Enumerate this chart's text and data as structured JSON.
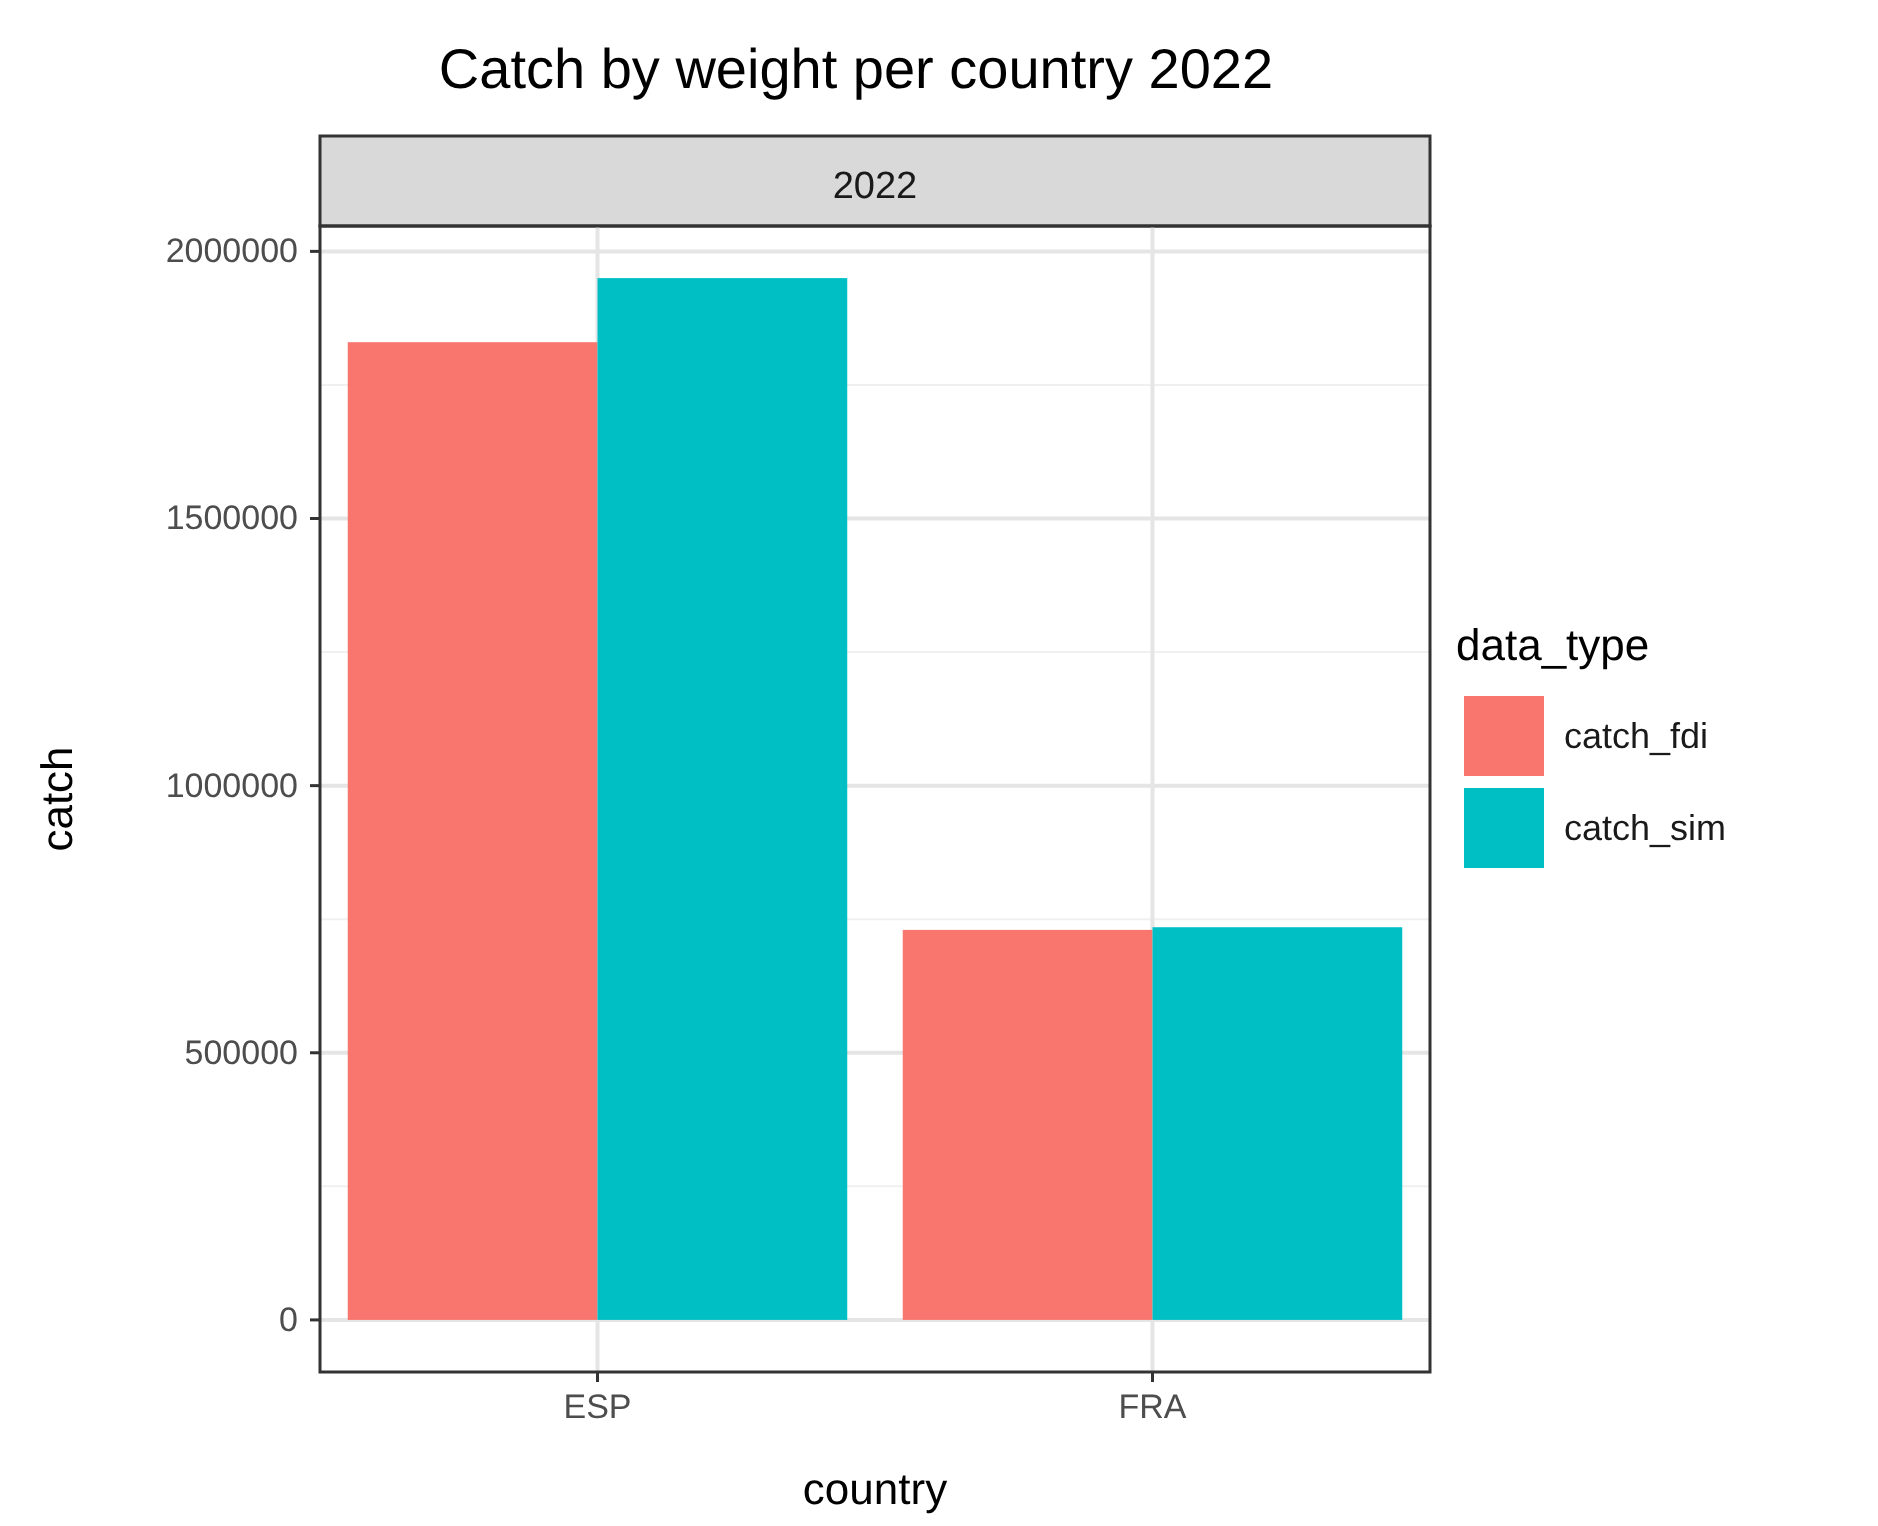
{
  "chart_data": {
    "type": "bar",
    "title": "Catch by weight per country 2022",
    "subtitle": "2022",
    "xlabel": "country",
    "ylabel": "catch",
    "legend_title": "data_type",
    "categories": [
      "ESP",
      "FRA"
    ],
    "series": [
      {
        "name": "catch_fdi",
        "color": "#f8766d",
        "values": [
          1830000,
          730000
        ]
      },
      {
        "name": "catch_sim",
        "color": "#00bfc4",
        "values": [
          1950000,
          735000
        ]
      }
    ],
    "ylim": [
      -97500,
      2047500
    ],
    "yticks": [
      0,
      500000,
      1000000,
      1500000,
      2000000
    ],
    "grid": true,
    "legend": "right"
  }
}
